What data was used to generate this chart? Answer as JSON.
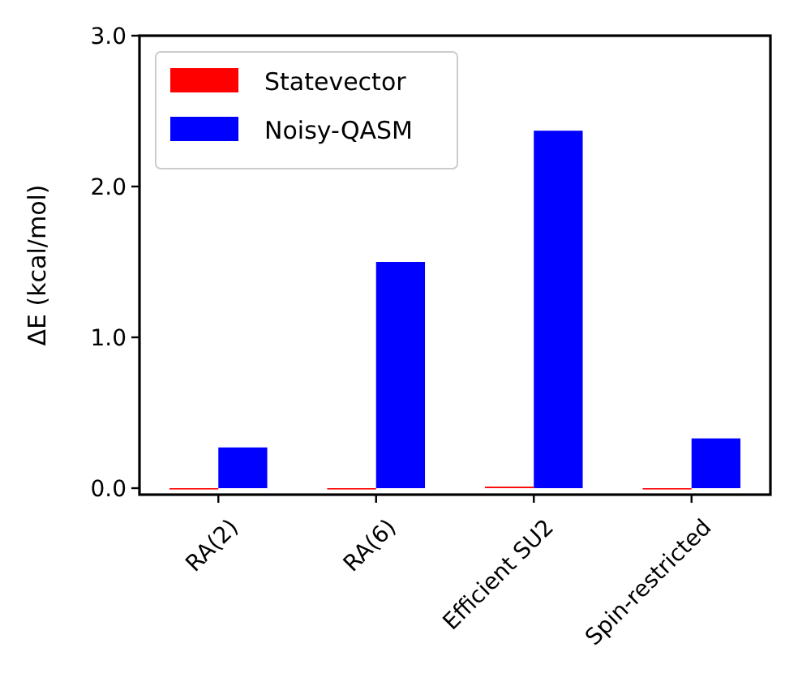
{
  "chart_data": {
    "type": "bar",
    "ylabel": "ΔE (kcal/mol)",
    "categories": [
      "RA(2)",
      "RA(6)",
      "Efficient SU2",
      "Spin-restricted"
    ],
    "series": [
      {
        "name": "Statevector",
        "color": "#ff0000",
        "values": [
          0.0,
          0.0,
          0.01,
          0.0
        ]
      },
      {
        "name": "Noisy-QASM",
        "color": "#0000ff",
        "values": [
          0.27,
          1.5,
          2.37,
          0.33
        ]
      }
    ],
    "ylim": [
      -0.043,
      3.0
    ],
    "yticks": [
      {
        "value": 0,
        "label": "0.0"
      },
      {
        "value": 1,
        "label": "1.0"
      },
      {
        "value": 2,
        "label": "2.0"
      },
      {
        "value": 3,
        "label": "3.0"
      }
    ],
    "grid": false,
    "legend": "top left"
  }
}
